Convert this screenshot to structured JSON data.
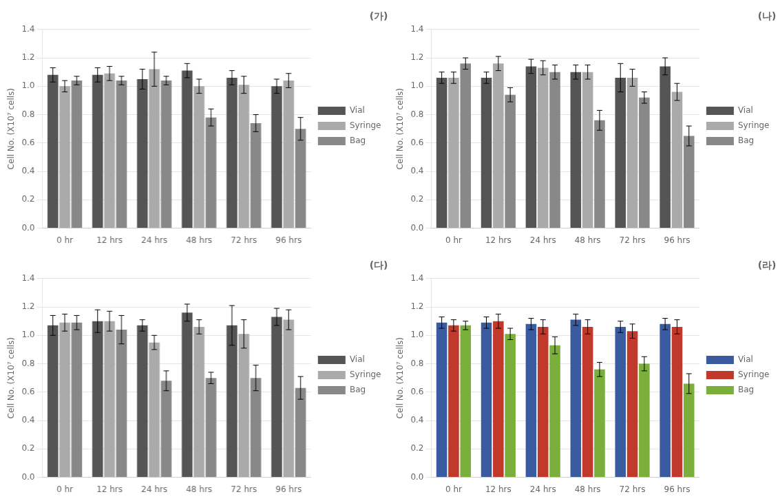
{
  "chart_data": [
    {
      "type": "bar",
      "title": "(가)",
      "categories": [
        "0 hr",
        "12 hrs",
        "24 hrs",
        "48 hrs",
        "72 hrs",
        "96 hrs"
      ],
      "series": [
        {
          "name": "Vial",
          "color": "#555555",
          "values": [
            1.08,
            1.08,
            1.05,
            1.11,
            1.06,
            1.0
          ],
          "errors": [
            0.05,
            0.05,
            0.07,
            0.05,
            0.05,
            0.05
          ]
        },
        {
          "name": "Syringe",
          "color": "#aaaaaa",
          "values": [
            1.0,
            1.09,
            1.12,
            1.0,
            1.01,
            1.04
          ],
          "errors": [
            0.04,
            0.05,
            0.12,
            0.05,
            0.06,
            0.05
          ]
        },
        {
          "name": "Bag",
          "color": "#888888",
          "values": [
            1.04,
            1.04,
            1.04,
            0.78,
            0.74,
            0.7
          ],
          "errors": [
            0.03,
            0.03,
            0.03,
            0.06,
            0.06,
            0.08
          ]
        }
      ],
      "ylabel": "Cell No. (X10⁷ cells)",
      "ylim": [
        0,
        1.4
      ],
      "yticks": [
        {
          "value": 0,
          "label": "0.0"
        },
        0.2,
        0.4,
        0.6,
        0.8,
        {
          "value": 1,
          "label": "1.0"
        },
        1.2,
        1.4
      ],
      "grid": true,
      "legend": "right"
    },
    {
      "type": "bar",
      "title": "(나)",
      "categories": [
        "0 hr",
        "12 hrs",
        "24 hrs",
        "48 hrs",
        "72 hrs",
        "96 hrs"
      ],
      "series": [
        {
          "name": "Vial",
          "color": "#555555",
          "values": [
            1.06,
            1.06,
            1.14,
            1.1,
            1.06,
            1.14
          ],
          "errors": [
            0.04,
            0.04,
            0.05,
            0.05,
            0.1,
            0.06
          ]
        },
        {
          "name": "Syringe",
          "color": "#aaaaaa",
          "values": [
            1.06,
            1.16,
            1.13,
            1.1,
            1.06,
            0.96
          ],
          "errors": [
            0.04,
            0.05,
            0.05,
            0.05,
            0.06,
            0.06
          ]
        },
        {
          "name": "Bag",
          "color": "#888888",
          "values": [
            1.16,
            0.94,
            1.1,
            0.76,
            0.92,
            0.65
          ],
          "errors": [
            0.04,
            0.05,
            0.05,
            0.07,
            0.04,
            0.07
          ]
        }
      ],
      "ylabel": "Cell No. (X10⁷ cells)",
      "ylim": [
        0,
        1.4
      ],
      "yticks": [
        {
          "value": 0,
          "label": "0.0"
        },
        0.2,
        0.4,
        0.6,
        0.8,
        {
          "value": 1,
          "label": "1.0"
        },
        1.2,
        1.4
      ],
      "grid": true,
      "legend": "right"
    },
    {
      "type": "bar",
      "title": "(다)",
      "categories": [
        "0 hr",
        "12 hrs",
        "24 hrs",
        "48 hrs",
        "72 hrs",
        "96 hrs"
      ],
      "series": [
        {
          "name": "Vial",
          "color": "#555555",
          "values": [
            1.07,
            1.1,
            1.07,
            1.16,
            1.07,
            1.13
          ],
          "errors": [
            0.07,
            0.08,
            0.04,
            0.06,
            0.14,
            0.06
          ]
        },
        {
          "name": "Syringe",
          "color": "#aaaaaa",
          "values": [
            1.09,
            1.1,
            0.95,
            1.06,
            1.01,
            1.11
          ],
          "errors": [
            0.06,
            0.07,
            0.05,
            0.05,
            0.1,
            0.07
          ]
        },
        {
          "name": "Bag",
          "color": "#888888",
          "values": [
            1.09,
            1.04,
            0.68,
            0.7,
            0.7,
            0.63
          ],
          "errors": [
            0.05,
            0.1,
            0.07,
            0.04,
            0.09,
            0.08
          ]
        }
      ],
      "ylabel": "Cell No. (X10⁷ cells)",
      "ylim": [
        0,
        1.4
      ],
      "yticks": [
        {
          "value": 0,
          "label": "0.0"
        },
        0.2,
        0.4,
        0.6,
        0.8,
        {
          "value": 1,
          "label": "1.0"
        },
        1.2,
        1.4
      ],
      "grid": true,
      "legend": "right"
    },
    {
      "type": "bar",
      "title": "(라)",
      "categories": [
        "0 hr",
        "12 hrs",
        "24 hrs",
        "48 hrs",
        "72 hrs",
        "96 hrs"
      ],
      "series": [
        {
          "name": "Vial",
          "color": "#3A5BA0",
          "values": [
            1.09,
            1.09,
            1.08,
            1.11,
            1.06,
            1.08
          ],
          "errors": [
            0.04,
            0.04,
            0.04,
            0.04,
            0.04,
            0.04
          ]
        },
        {
          "name": "Syringe",
          "color": "#C0392B",
          "values": [
            1.07,
            1.1,
            1.06,
            1.06,
            1.03,
            1.06
          ],
          "errors": [
            0.04,
            0.05,
            0.05,
            0.05,
            0.05,
            0.05
          ]
        },
        {
          "name": "Bag",
          "color": "#7AAF3B",
          "values": [
            1.07,
            1.01,
            0.93,
            0.76,
            0.8,
            0.66
          ],
          "errors": [
            0.03,
            0.04,
            0.06,
            0.05,
            0.05,
            0.07
          ]
        }
      ],
      "ylabel": "Cell No. (X10⁷ cells)",
      "ylim": [
        0,
        1.4
      ],
      "yticks": [
        {
          "value": 0,
          "label": "0.0"
        },
        0.2,
        0.4,
        0.6,
        0.8,
        {
          "value": 1,
          "label": "1.0"
        },
        1.2,
        1.4
      ],
      "grid": true,
      "legend": "right"
    }
  ]
}
